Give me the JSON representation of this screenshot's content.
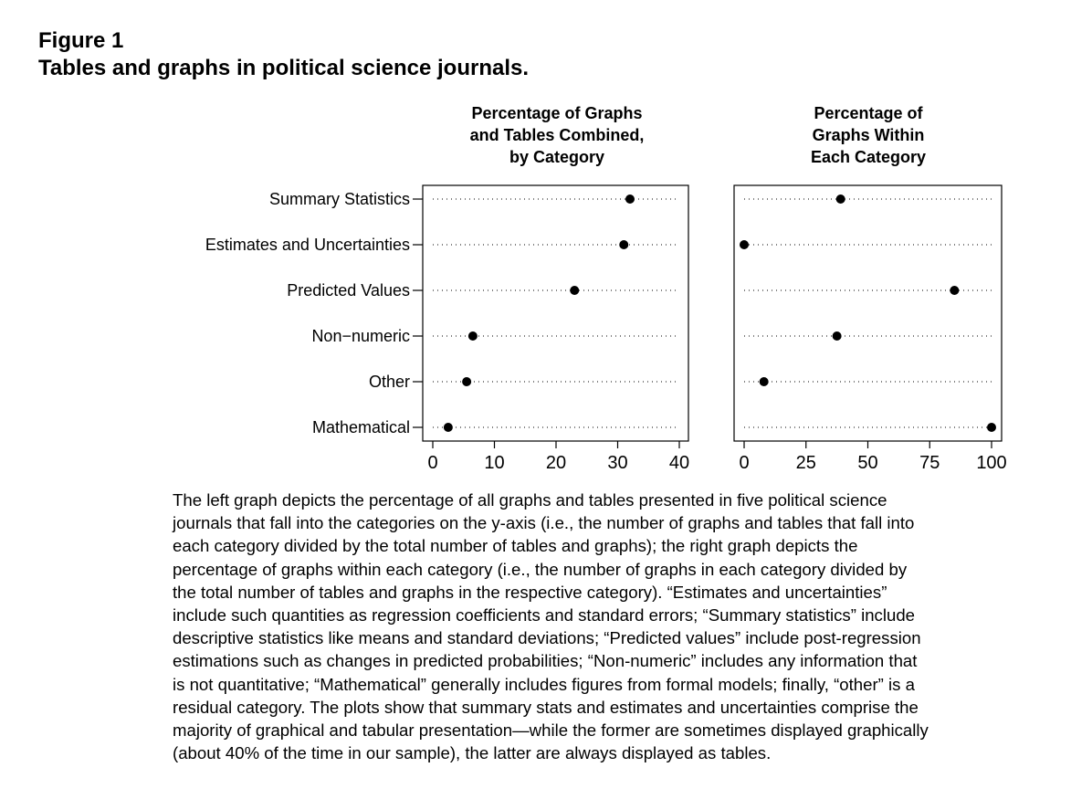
{
  "figure": {
    "label": "Figure 1",
    "title": "Tables and graphs in political science journals."
  },
  "panels": [
    {
      "title_lines": [
        "Percentage of Graphs",
        "and Tables Combined,",
        "by Category"
      ]
    },
    {
      "title_lines": [
        "Percentage of",
        "Graphs Within",
        "Each Category"
      ]
    }
  ],
  "chart_data": [
    {
      "type": "scatter",
      "title": "Percentage of Graphs and Tables Combined, by Category",
      "categories": [
        "Summary Statistics",
        "Estimates and Uncertainties",
        "Predicted Values",
        "Non−numeric",
        "Other",
        "Mathematical"
      ],
      "values": [
        32,
        31,
        23,
        6.5,
        5.5,
        2.5
      ],
      "xlim": [
        0,
        40
      ],
      "xticks": [
        0,
        10,
        20,
        30,
        40
      ],
      "xlabel": "",
      "ylabel": ""
    },
    {
      "type": "scatter",
      "title": "Percentage of Graphs Within Each Category",
      "categories": [
        "Summary Statistics",
        "Estimates and Uncertainties",
        "Predicted Values",
        "Non−numeric",
        "Other",
        "Mathematical"
      ],
      "values": [
        39,
        0,
        85,
        37.5,
        8,
        100
      ],
      "xlim": [
        0,
        100
      ],
      "xticks": [
        0,
        25,
        50,
        75,
        100
      ],
      "xlabel": "",
      "ylabel": ""
    }
  ],
  "caption_lines": [
    "The left graph depicts the percentage of all graphs and tables presented in five political science",
    "journals that fall into the categories on the y-axis (i.e., the number of graphs and tables that fall into",
    "each category divided by the total number of tables and graphs); the right graph depicts the",
    "percentage of graphs within each category (i.e., the number of graphs in each category divided by",
    "the total number of tables and graphs in the respective category). “Estimates and uncertainties”",
    "include such quantities as regression coefficients and standard errors; “Summary statistics” include",
    "descriptive statistics like means and standard deviations; “Predicted values” include post-regression",
    "estimations such as changes in predicted probabilities; “Non-numeric” includes any information that",
    "is not quantitative; “Mathematical” generally includes figures from formal models; finally, “other” is a",
    "residual category. The plots show that summary stats and estimates and uncertainties comprise the",
    "majority of graphical and tabular presentation—while the former are sometimes displayed graphically",
    "(about 40% of the time in our sample), the latter are always displayed as tables."
  ]
}
